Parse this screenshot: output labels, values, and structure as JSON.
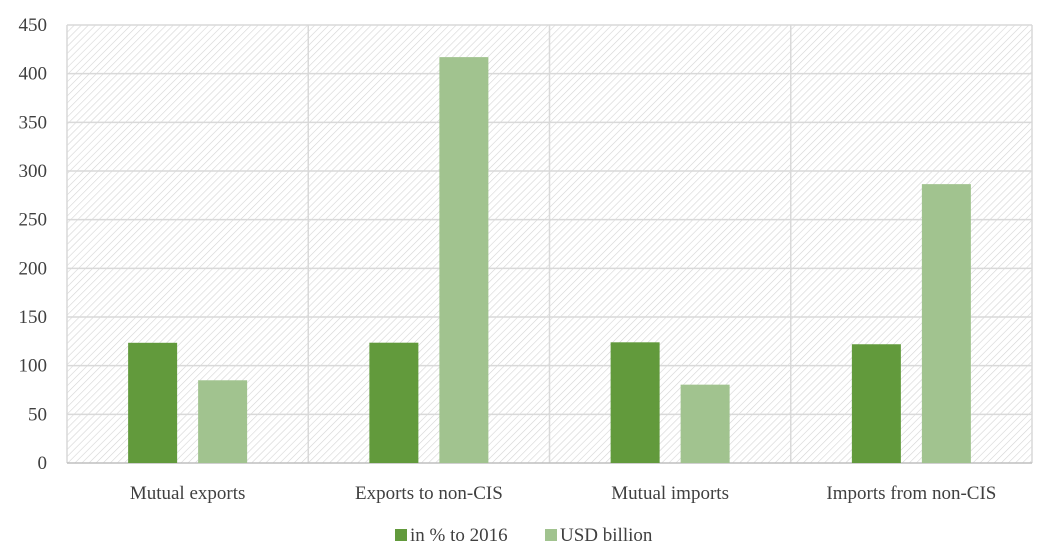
{
  "chart_data": {
    "type": "bar",
    "title": "",
    "xlabel": "",
    "ylabel": "",
    "ylim": [
      0,
      450
    ],
    "yticks": [
      0,
      50,
      100,
      150,
      200,
      250,
      300,
      350,
      400,
      450
    ],
    "grid": true,
    "legend_position": "bottom",
    "categories": [
      "Mutual exports",
      "Exports to non-CIS",
      "Mutual imports",
      "Imports from non-CIS"
    ],
    "series": [
      {
        "name": "in % to 2016",
        "values": [
          123.5,
          123.6,
          124,
          122
        ],
        "color": "#629a3c"
      },
      {
        "name": "USD billion",
        "values": [
          85,
          417,
          80.5,
          286.5
        ],
        "color": "#a1c38f"
      }
    ]
  },
  "colors": {
    "grid": "#d9d9d9",
    "hatch": "#d4d4d4",
    "axis": "#bfbfbf",
    "text": "#404040"
  }
}
